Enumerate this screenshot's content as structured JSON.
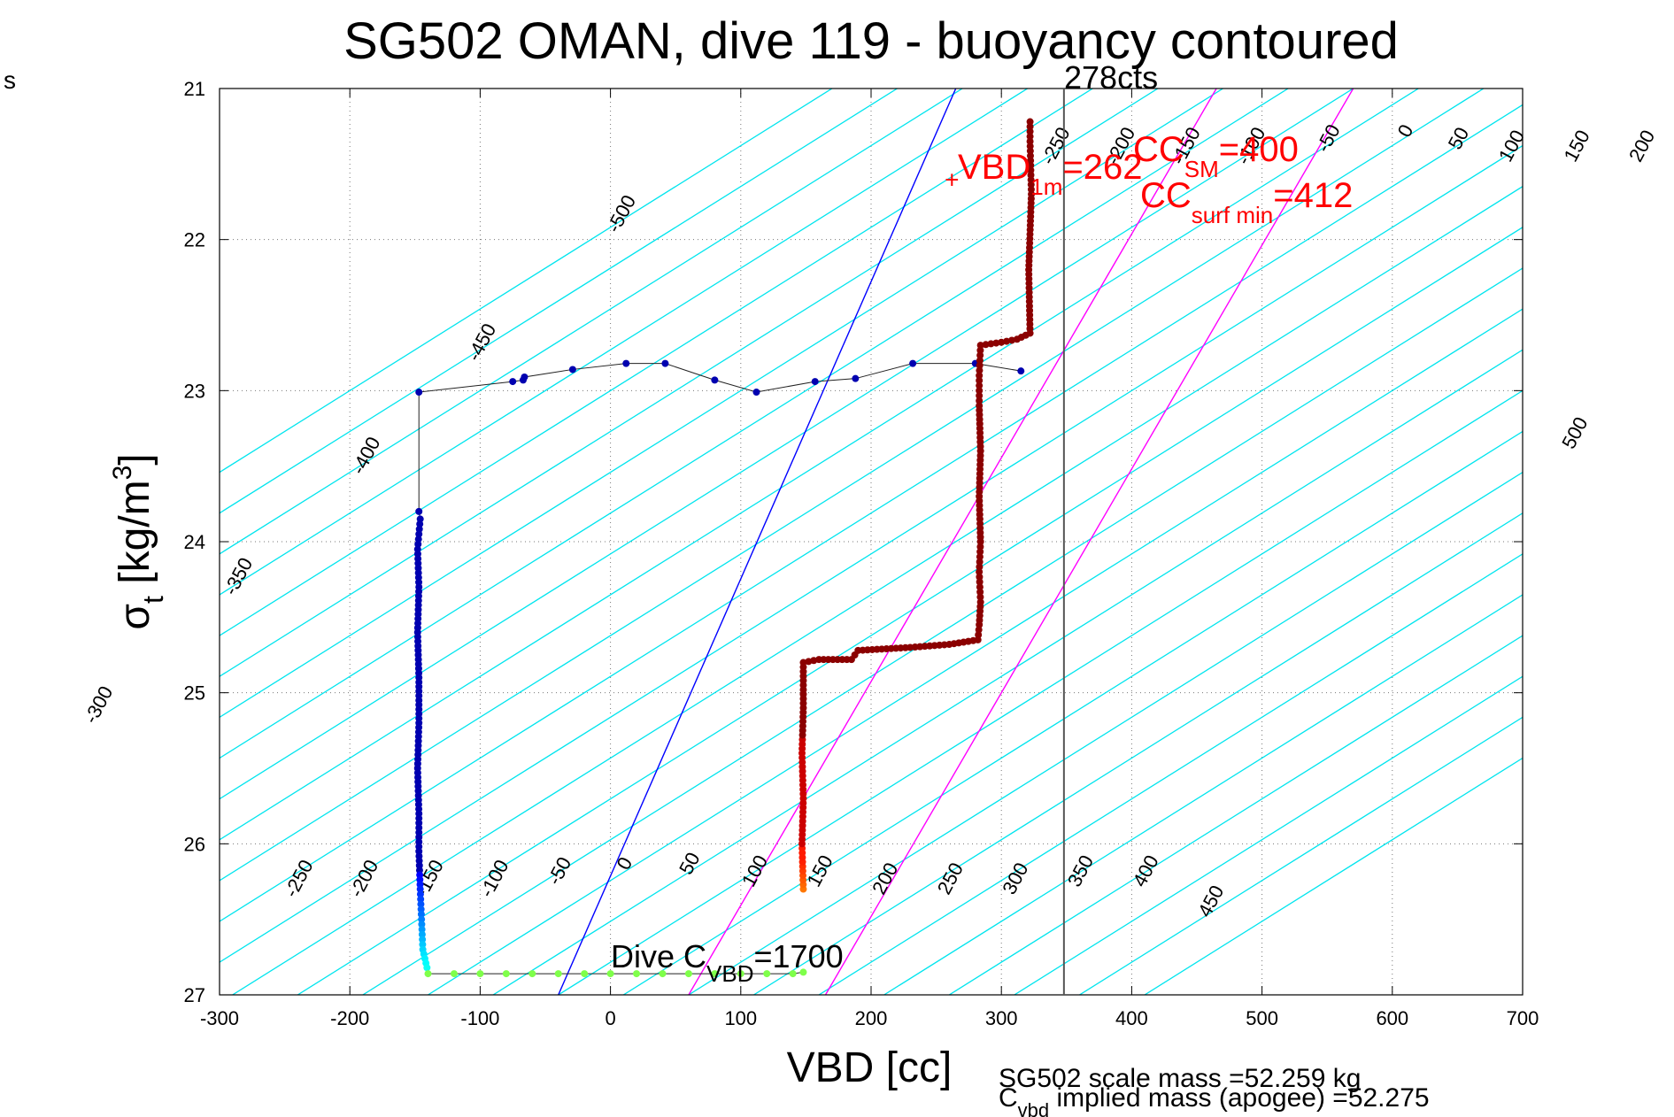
{
  "chart_data": {
    "type": "scatter",
    "title": "SG502 OMAN, dive 119 - buoyancy contoured",
    "xlabel": "VBD [cc]",
    "ylabel_main": "σ",
    "ylabel_sub": "t",
    "ylabel_unit_pre": " [kg/m",
    "ylabel_unit_sup": "3",
    "ylabel_unit_post": "]",
    "corner_text": "s",
    "xlim": [
      -300,
      700
    ],
    "ylim": [
      21,
      27
    ],
    "y_reversed": true,
    "grid": true,
    "xticks": [
      -300,
      -200,
      -100,
      0,
      100,
      200,
      300,
      400,
      500,
      600,
      700
    ],
    "yticks": [
      21,
      22,
      23,
      24,
      25,
      26,
      27
    ],
    "contours": {
      "color": "#00e5ee",
      "slope_cc_per_sigma": -185,
      "levels": [
        -500,
        -450,
        -400,
        -350,
        -300,
        -250,
        -200,
        -150,
        -100,
        -50,
        0,
        50,
        100,
        150,
        200,
        250,
        300,
        350,
        400,
        450,
        500,
        550,
        600,
        650,
        700,
        750,
        800,
        850
      ],
      "labels_top": [
        {
          "text": "-500",
          "level": -500,
          "sigma": 21.85
        },
        {
          "text": "-450",
          "level": -450,
          "sigma": 22.7
        },
        {
          "text": "-400",
          "level": -400,
          "sigma": 23.45
        },
        {
          "text": "-350",
          "level": -350,
          "sigma": 24.25
        },
        {
          "text": "-300",
          "level": -300,
          "sigma": 25.1
        },
        {
          "text": "-250",
          "level": -250,
          "sigma": 21.4
        },
        {
          "text": "-200",
          "level": -200,
          "sigma": 21.4
        },
        {
          "text": "-150",
          "level": -150,
          "sigma": 21.4
        },
        {
          "text": "-100",
          "level": -100,
          "sigma": 21.4
        },
        {
          "text": "-50",
          "level": -50,
          "sigma": 21.35
        },
        {
          "text": "0",
          "level": 0,
          "sigma": 21.3
        },
        {
          "text": "50",
          "level": 50,
          "sigma": 21.35
        },
        {
          "text": "100",
          "level": 100,
          "sigma": 21.4
        },
        {
          "text": "150",
          "level": 150,
          "sigma": 21.4
        },
        {
          "text": "200",
          "level": 200,
          "sigma": 21.4
        },
        {
          "text": "300",
          "level": 300,
          "sigma": 21.4
        },
        {
          "text": "350",
          "level": 350,
          "sigma": 21.4
        },
        {
          "text": "400",
          "level": 400,
          "sigma": 21.4
        },
        {
          "text": "450",
          "level": 450,
          "sigma": 21.6
        },
        {
          "text": "500",
          "level": 500,
          "sigma": 23.3
        }
      ],
      "labels_bottom": [
        {
          "text": "-250",
          "level": -250,
          "sigma": 26.25
        },
        {
          "text": "-200",
          "level": -200,
          "sigma": 26.25
        },
        {
          "text": "-150",
          "level": -150,
          "sigma": 26.25
        },
        {
          "text": "-100",
          "level": -100,
          "sigma": 26.25
        },
        {
          "text": "-50",
          "level": -50,
          "sigma": 26.2
        },
        {
          "text": "0",
          "level": 0,
          "sigma": 26.15
        },
        {
          "text": "50",
          "level": 50,
          "sigma": 26.15
        },
        {
          "text": "100",
          "level": 100,
          "sigma": 26.2
        },
        {
          "text": "150",
          "level": 150,
          "sigma": 26.2
        },
        {
          "text": "200",
          "level": 200,
          "sigma": 26.25
        },
        {
          "text": "250",
          "level": 250,
          "sigma": 26.25
        },
        {
          "text": "300",
          "level": 300,
          "sigma": 26.25
        },
        {
          "text": "350",
          "level": 350,
          "sigma": 26.2
        },
        {
          "text": "400",
          "level": 400,
          "sigma": 26.2
        },
        {
          "text": "450",
          "level": 450,
          "sigma": 26.4
        }
      ]
    },
    "ref_lines": [
      {
        "name": "vbd-zero-line",
        "color": "#0000ff",
        "x_at_27": -40,
        "x_at_21": 265
      },
      {
        "name": "magenta-line-1",
        "color": "#ff00ff",
        "x_at_27": 60,
        "x_at_21": 465
      },
      {
        "name": "magenta-line-2",
        "color": "#ff00ff",
        "x_at_27": 165,
        "x_at_21": 570
      }
    ],
    "vertical_line": {
      "x": 348,
      "color": "#555555",
      "label": "278cts"
    },
    "vbd_marker": {
      "x": 262,
      "y": 21.6,
      "color": "#ff0000"
    },
    "annotations": {
      "vbd1m_main": "VBD",
      "vbd1m_sub": "1m",
      "vbd1m_value": "=262",
      "ccsm_main": "CC",
      "ccsm_sub": "SM",
      "ccsm_value": "=400",
      "ccsurf_main": "CC",
      "ccsurf_sub": "surf min",
      "ccsurf_value": "=412",
      "dive_main": "Dive C",
      "dive_sub": "VBD",
      "dive_value": "=1700",
      "scale_mass": "SG502 scale mass =52.259 kg",
      "cvbd_main": "C",
      "cvbd_sub": "vbd",
      "cvbd_rest": " implied mass (apogee) =52.275"
    },
    "dive_descent": {
      "color": "#0000b0",
      "surface_points": [
        [
          315,
          22.87
        ],
        [
          280,
          22.82
        ],
        [
          232,
          22.82
        ],
        [
          188,
          22.92
        ],
        [
          157,
          22.94
        ],
        [
          112,
          23.01
        ],
        [
          80,
          22.93
        ],
        [
          42,
          22.82
        ],
        [
          12,
          22.82
        ],
        [
          -29,
          22.86
        ],
        [
          -66,
          22.91
        ],
        [
          -67,
          22.93
        ],
        [
          -75,
          22.94
        ],
        [
          -147,
          23.01
        ]
      ],
      "profile_points": [
        [
          -147,
          23.8
        ],
        [
          -146,
          23.85
        ],
        [
          -148,
          24.05
        ],
        [
          -147,
          24.3
        ],
        [
          -148,
          24.6
        ],
        [
          -147,
          24.9
        ],
        [
          -147,
          25.2
        ],
        [
          -148,
          25.5
        ],
        [
          -147,
          25.8
        ],
        [
          -147,
          26.05
        ],
        [
          -146,
          26.3
        ],
        [
          -145,
          26.5
        ],
        [
          -144,
          26.7
        ],
        [
          -140,
          26.85
        ]
      ]
    },
    "bottom_points": [
      [
        -140,
        26.86
      ],
      [
        -120,
        26.86
      ],
      [
        -100,
        26.86
      ],
      [
        -80,
        26.86
      ],
      [
        -60,
        26.86
      ],
      [
        -40,
        26.86
      ],
      [
        -20,
        26.86
      ],
      [
        0,
        26.86
      ],
      [
        20,
        26.86
      ],
      [
        40,
        26.86
      ],
      [
        60,
        26.86
      ],
      [
        80,
        26.86
      ],
      [
        100,
        26.86
      ],
      [
        120,
        26.86
      ],
      [
        140,
        26.86
      ],
      [
        148,
        26.85
      ]
    ],
    "dive_ascent": {
      "color": "#8b0000",
      "profile_points": [
        [
          148,
          26.3
        ],
        [
          147,
          26.0
        ],
        [
          148,
          25.7
        ],
        [
          147,
          25.4
        ],
        [
          148,
          25.1
        ],
        [
          148,
          24.8
        ],
        [
          160,
          24.78
        ],
        [
          185,
          24.78
        ],
        [
          190,
          24.72
        ],
        [
          230,
          24.7
        ],
        [
          260,
          24.68
        ],
        [
          282,
          24.65
        ],
        [
          283,
          24.55
        ],
        [
          284,
          24.4
        ],
        [
          283,
          24.2
        ],
        [
          284,
          24.0
        ],
        [
          283,
          23.7
        ],
        [
          284,
          23.4
        ],
        [
          283,
          23.1
        ],
        [
          283,
          22.9
        ],
        [
          284,
          22.7
        ],
        [
          300,
          22.68
        ],
        [
          312,
          22.66
        ],
        [
          322,
          22.62
        ],
        [
          321,
          22.2
        ],
        [
          323,
          21.7
        ],
        [
          322,
          21.35
        ],
        [
          322,
          21.22
        ]
      ]
    }
  }
}
